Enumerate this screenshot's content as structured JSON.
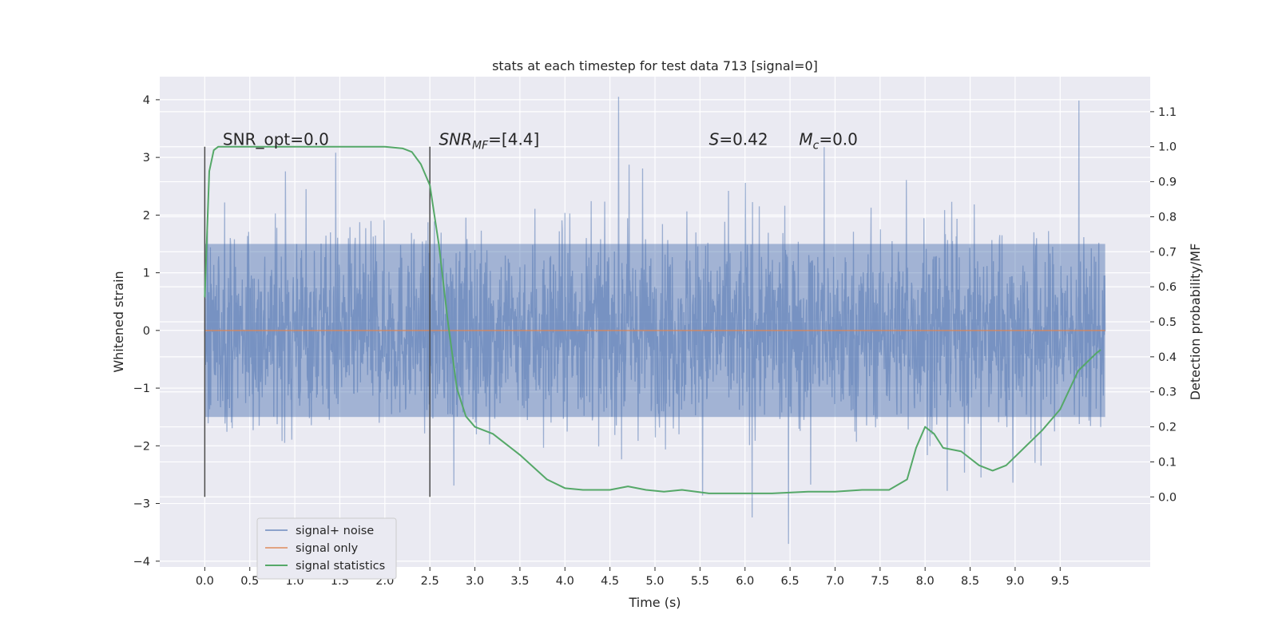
{
  "chart_data": {
    "type": "line",
    "title": "stats at each timestep for test data 713 [signal=0]",
    "xlabel": "Time (s)",
    "ylabel": "Whitened strain",
    "ylabel_right": "Detection probability/MF",
    "xlim": [
      -0.5,
      10.5
    ],
    "ylim": [
      -4.1,
      4.4
    ],
    "ylim_right": [
      -0.2,
      1.2
    ],
    "x_ticks": [
      0.0,
      0.5,
      1.0,
      1.5,
      2.0,
      2.5,
      3.0,
      3.5,
      4.0,
      4.5,
      5.0,
      5.5,
      6.0,
      6.5,
      7.0,
      7.5,
      8.0,
      8.5,
      9.0,
      9.5
    ],
    "y_ticks": [
      -4,
      -3,
      -2,
      -1,
      0,
      1,
      2,
      3,
      4
    ],
    "y_ticks_right": [
      0.0,
      0.1,
      0.2,
      0.3,
      0.4,
      0.5,
      0.6,
      0.7,
      0.8,
      0.9,
      1.0,
      1.1
    ],
    "grid": true,
    "legend_position": "bottom-left",
    "annotations": [
      {
        "text": "SNR_opt=0.0",
        "x": 0.2
      },
      {
        "text": "SNR",
        "sub": "MF",
        "suffix": "=[4.4]",
        "italic": true,
        "x": 2.6
      },
      {
        "text": "S",
        "suffix": "=0.42",
        "italic": true,
        "x": 5.6
      },
      {
        "text": "M",
        "sub": "c",
        "suffix": "=0.0",
        "italic": true,
        "x": 6.6
      }
    ],
    "vlines": [
      0.0,
      2.5
    ],
    "series": [
      {
        "name": "signal+ noise",
        "color": "#4c72b0",
        "opacity": 0.5,
        "x_range": [
          0.0,
          10.0
        ],
        "approx_amplitude": {
          "core_min": -1.5,
          "core_max": 1.5,
          "peak_max": 4.05,
          "peak_min": -3.7
        }
      },
      {
        "name": "signal only",
        "color": "#dd8452",
        "x": [
          0.0,
          10.0
        ],
        "y": [
          0.0,
          0.0
        ]
      },
      {
        "name": "signal statistics",
        "color": "#55a868",
        "axis": "right",
        "x": [
          0.0,
          0.05,
          0.1,
          0.15,
          0.2,
          0.4,
          0.8,
          1.2,
          1.6,
          2.0,
          2.2,
          2.3,
          2.4,
          2.5,
          2.6,
          2.7,
          2.8,
          2.9,
          3.0,
          3.2,
          3.5,
          3.8,
          4.0,
          4.2,
          4.5,
          4.7,
          4.9,
          5.1,
          5.3,
          5.6,
          6.0,
          6.3,
          6.7,
          7.0,
          7.3,
          7.6,
          7.8,
          7.9,
          8.0,
          8.1,
          8.2,
          8.4,
          8.6,
          8.75,
          8.9,
          9.1,
          9.3,
          9.5,
          9.7,
          9.9,
          9.95
        ],
        "y": [
          0.57,
          0.93,
          0.99,
          1.0,
          1.0,
          1.0,
          1.0,
          1.0,
          1.0,
          1.0,
          0.995,
          0.985,
          0.95,
          0.89,
          0.72,
          0.5,
          0.31,
          0.23,
          0.2,
          0.18,
          0.12,
          0.05,
          0.025,
          0.02,
          0.02,
          0.03,
          0.02,
          0.015,
          0.02,
          0.01,
          0.01,
          0.01,
          0.015,
          0.015,
          0.02,
          0.02,
          0.05,
          0.14,
          0.2,
          0.18,
          0.14,
          0.13,
          0.09,
          0.075,
          0.09,
          0.14,
          0.19,
          0.25,
          0.36,
          0.41,
          0.42
        ]
      }
    ]
  }
}
